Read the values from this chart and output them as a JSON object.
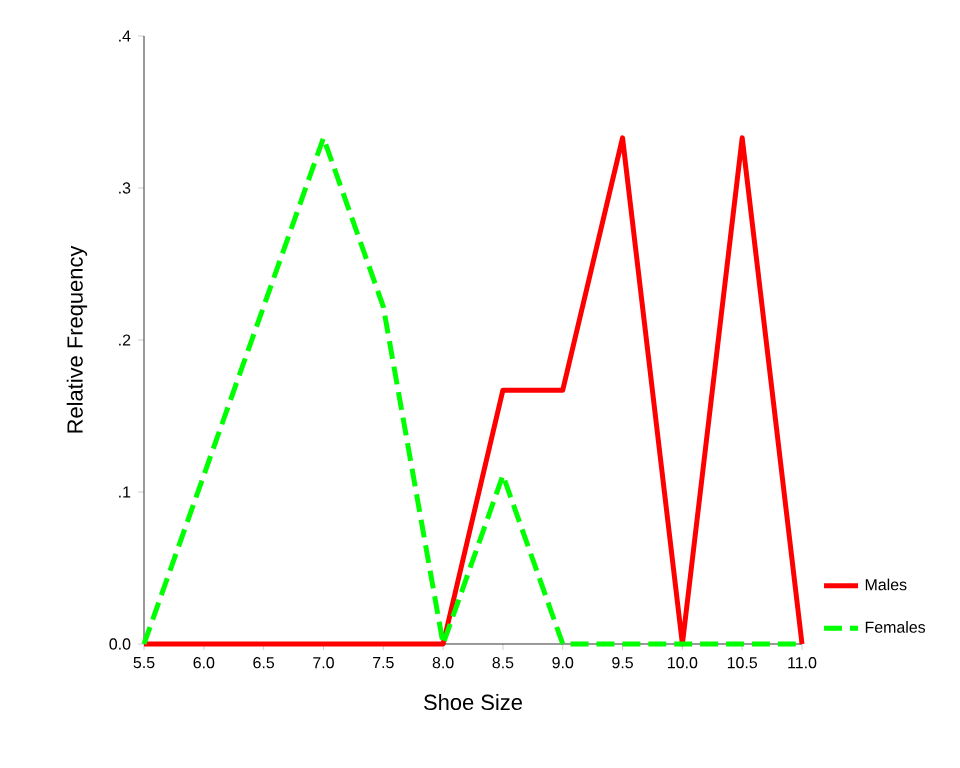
{
  "chart_data": {
    "type": "line",
    "xlabel": "Shoe Size",
    "ylabel": "Relative Frequency",
    "x": [
      5.5,
      6.0,
      6.5,
      7.0,
      7.5,
      8.0,
      8.5,
      9.0,
      9.5,
      10.0,
      10.5,
      11.0
    ],
    "series": [
      {
        "name": "Males",
        "color": "#ff0000",
        "line_style": "solid",
        "values": [
          0,
          0,
          0,
          0,
          0,
          0,
          0.167,
          0.167,
          0.333,
          0,
          0.333,
          0
        ]
      },
      {
        "name": "Females",
        "color": "#00ff00",
        "line_style": "dashed",
        "values": [
          0,
          0.111,
          0.222,
          0.333,
          0.222,
          0,
          0.111,
          0,
          0,
          0,
          0,
          0
        ]
      }
    ],
    "xlim": [
      5.5,
      11.0
    ],
    "xticks": [
      {
        "value": 5.5,
        "label": "5.5"
      },
      {
        "value": 6.0,
        "label": "6.0"
      },
      {
        "value": 6.5,
        "label": "6.5"
      },
      {
        "value": 7.0,
        "label": "7.0"
      },
      {
        "value": 7.5,
        "label": "7.5"
      },
      {
        "value": 8.0,
        "label": "8.0"
      },
      {
        "value": 8.5,
        "label": "8.5"
      },
      {
        "value": 9.0,
        "label": "9.0"
      },
      {
        "value": 9.5,
        "label": "9.5"
      },
      {
        "value": 10.0,
        "label": "10.0"
      },
      {
        "value": 10.5,
        "label": "10.5"
      },
      {
        "value": 11.0,
        "label": "11.0"
      }
    ],
    "ylim": [
      0,
      0.4
    ],
    "yticks": [
      {
        "value": 0,
        "label": "0.0"
      },
      {
        "value": 0.1,
        "label": ".1"
      },
      {
        "value": 0.2,
        "label": ".2"
      },
      {
        "value": 0.3,
        "label": ".3"
      },
      {
        "value": 0.4,
        "label": ".4"
      }
    ],
    "legend": "bottom right",
    "grid": false,
    "marker": "none"
  }
}
